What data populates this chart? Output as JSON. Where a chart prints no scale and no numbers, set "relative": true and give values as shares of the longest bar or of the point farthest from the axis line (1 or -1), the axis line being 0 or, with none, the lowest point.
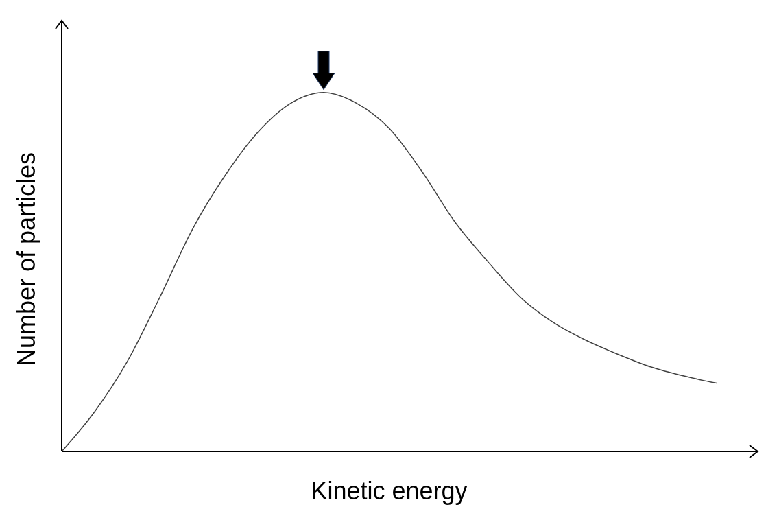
{
  "chart_data": {
    "type": "line",
    "relative": true,
    "xlabel": "Kinetic energy",
    "ylabel": "Number of particles",
    "categories": [
      null,
      null,
      null,
      null,
      null,
      null,
      null,
      null,
      null,
      null,
      null,
      null,
      null,
      null,
      null,
      null,
      null,
      null,
      null,
      null,
      null
    ],
    "series": [
      {
        "color": "#404040",
        "values": [
          0,
          0.11,
          0.25,
          0.43,
          0.62,
          0.77,
          0.89,
          0.97,
          1,
          0.97,
          0.9,
          0.78,
          0.64,
          0.53,
          0.43,
          0.36,
          0.31,
          0.27,
          0.235,
          0.21,
          0.19
        ]
      }
    ],
    "marker": "none",
    "grid": false,
    "legend": false
  }
}
